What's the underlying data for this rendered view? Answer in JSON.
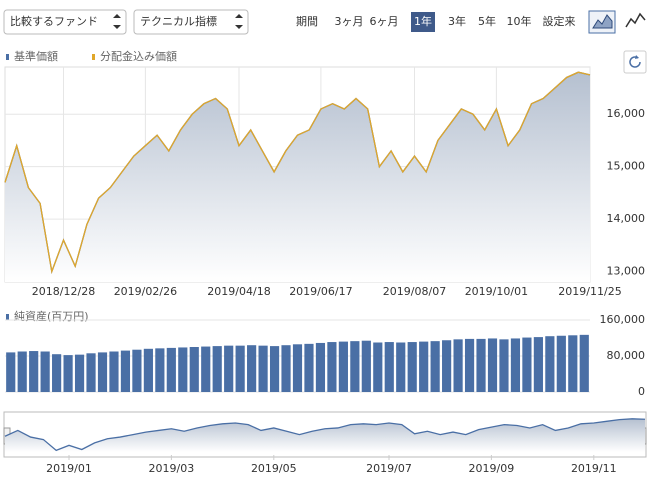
{
  "controls": {
    "compare": "比較するファンド",
    "technical": "テクニカル指標",
    "period_label": "期間",
    "periods": [
      "3ヶ月",
      "6ヶ月",
      "1年",
      "3年",
      "5年",
      "10年",
      "設定来"
    ],
    "active_period": 2
  },
  "chart_data": [
    {
      "type": "line",
      "categories": [
        null,
        null,
        null,
        null,
        null,
        "2018/12/28",
        null,
        null,
        null,
        null,
        null,
        null,
        "2019/02/26",
        null,
        null,
        null,
        null,
        null,
        null,
        null,
        "2019/04/18",
        null,
        null,
        null,
        null,
        null,
        null,
        "2019/06/17",
        null,
        null,
        null,
        null,
        null,
        null,
        null,
        "2019/08/07",
        null,
        null,
        null,
        null,
        null,
        null,
        "2019/10/01",
        null,
        null,
        null,
        null,
        null,
        null,
        null,
        "2019/11/25"
      ],
      "series": [
        {
          "name": "基準価額",
          "color": "#4a6fa5",
          "values": [
            14700,
            15400,
            14600,
            14300,
            13000,
            13600,
            13100,
            13900,
            14400,
            14600,
            14900,
            15200,
            15400,
            15600,
            15300,
            15700,
            16000,
            16200,
            16300,
            16100,
            15400,
            15700,
            15300,
            14900,
            15300,
            15600,
            15700,
            16100,
            16200,
            16100,
            16300,
            16100,
            15000,
            15300,
            14900,
            15200,
            14900,
            15500,
            15800,
            16100,
            16000,
            15700,
            16100,
            15400,
            15700,
            16200,
            16300,
            16500,
            16700,
            16800,
            16750
          ]
        },
        {
          "name": "分配金込み価額",
          "color": "#e0a72a",
          "values": [
            14700,
            15400,
            14600,
            14300,
            13000,
            13600,
            13100,
            13900,
            14400,
            14600,
            14900,
            15200,
            15400,
            15600,
            15300,
            15700,
            16000,
            16200,
            16300,
            16100,
            15400,
            15700,
            15300,
            14900,
            15300,
            15600,
            15700,
            16100,
            16200,
            16100,
            16300,
            16100,
            15000,
            15300,
            14900,
            15200,
            14900,
            15500,
            15800,
            16100,
            16000,
            15700,
            16100,
            15400,
            15700,
            16200,
            16300,
            16500,
            16700,
            16800,
            16750
          ]
        }
      ],
      "ylim": [
        12800,
        16900
      ],
      "yticks": [
        {
          "value": 13000,
          "label": "13,000"
        },
        {
          "value": 14000,
          "label": "14,000"
        },
        {
          "value": 15000,
          "label": "15,000"
        },
        {
          "value": 16000,
          "label": "16,000"
        }
      ],
      "grid": true
    },
    {
      "type": "bar",
      "title": "純資産(百万円)",
      "color": "#4a6fa5",
      "values": [
        88000,
        90000,
        91000,
        90000,
        84000,
        82000,
        83000,
        86000,
        88000,
        90000,
        92000,
        94000,
        96000,
        97000,
        98000,
        99000,
        100000,
        101000,
        102000,
        103000,
        103000,
        104000,
        103000,
        102000,
        104000,
        106000,
        107000,
        109000,
        111000,
        112000,
        113000,
        114000,
        110000,
        111000,
        110000,
        111000,
        112000,
        113000,
        115000,
        117000,
        118000,
        118000,
        119000,
        117000,
        119000,
        121000,
        122000,
        124000,
        125000,
        126000,
        127000
      ],
      "ylim": [
        0,
        160000
      ],
      "yticks": [
        0,
        {
          "value": 80000,
          "label": "80,000"
        },
        {
          "value": 160000,
          "label": "160,000"
        }
      ]
    },
    {
      "type": "line",
      "categories": [
        null,
        null,
        null,
        null,
        null,
        "2019/01",
        null,
        null,
        null,
        null,
        null,
        null,
        null,
        "2019/03",
        null,
        null,
        null,
        null,
        null,
        null,
        null,
        "2019/05",
        null,
        null,
        null,
        null,
        null,
        null,
        null,
        null,
        "2019/07",
        null,
        null,
        null,
        null,
        null,
        null,
        null,
        "2019/09",
        null,
        null,
        null,
        null,
        null,
        null,
        null,
        "2019/11",
        null,
        null,
        null,
        null
      ],
      "series": [
        {
          "color": "#4a6fa5",
          "values": [
            14700,
            15400,
            14600,
            14300,
            13000,
            13600,
            13100,
            13900,
            14400,
            14600,
            14900,
            15200,
            15400,
            15600,
            15300,
            15700,
            16000,
            16200,
            16300,
            16100,
            15400,
            15700,
            15300,
            14900,
            15300,
            15600,
            15700,
            16100,
            16200,
            16100,
            16300,
            16100,
            15000,
            15300,
            14900,
            15200,
            14900,
            15500,
            15800,
            16100,
            16000,
            15700,
            16100,
            15400,
            15700,
            16200,
            16300,
            16500,
            16700,
            16800,
            16750
          ]
        }
      ],
      "ylim": [
        12800,
        16900
      ]
    }
  ]
}
